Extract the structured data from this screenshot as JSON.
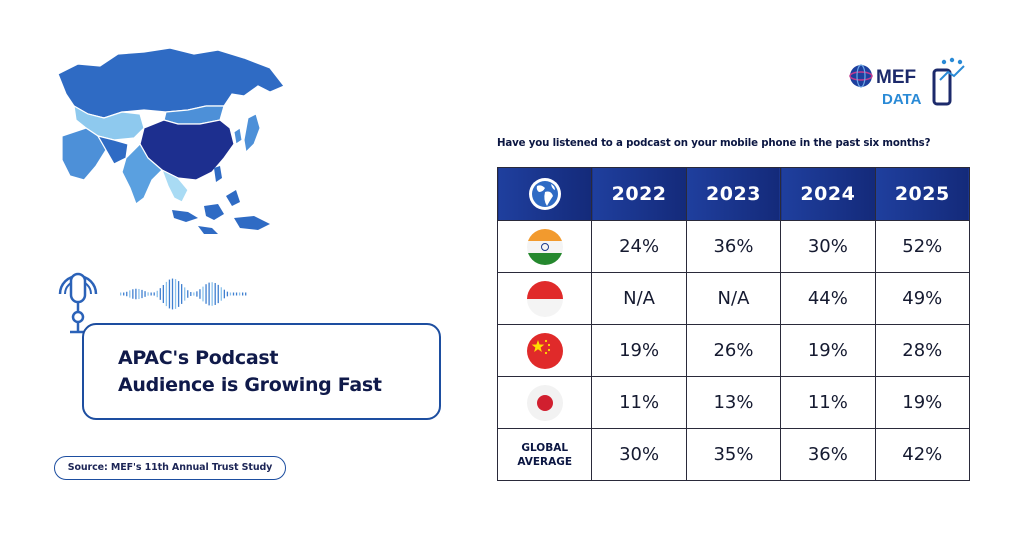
{
  "title": {
    "line1": "APAC's Podcast",
    "line2": "Audience is Growing Fast"
  },
  "source": "Source: MEF's 11th Annual Trust Study",
  "logo": {
    "text_top": "MEF",
    "text_bottom": "DATA"
  },
  "question": "Have you listened to a podcast on your mobile phone in the past six months?",
  "icons": {
    "header": "globe-icon",
    "map": "asia-map",
    "podcast": "microphone-icon",
    "wave": "soundwave-icon"
  },
  "colors": {
    "brand_blue": "#1d4ea0",
    "header_bg": "#1a3588",
    "dark_text": "#0f2150"
  },
  "chart_data": {
    "type": "table",
    "columns": [
      "2022",
      "2023",
      "2024",
      "2025"
    ],
    "rows": [
      {
        "label_icon": "india-flag-icon",
        "values": [
          "24%",
          "36%",
          "30%",
          "52%"
        ]
      },
      {
        "label_icon": "indonesia-flag-icon",
        "values": [
          "N/A",
          "N/A",
          "44%",
          "49%"
        ]
      },
      {
        "label_icon": "china-flag-icon",
        "values": [
          "19%",
          "26%",
          "19%",
          "28%"
        ]
      },
      {
        "label_icon": "japan-flag-icon",
        "values": [
          "11%",
          "13%",
          "11%",
          "19%"
        ]
      },
      {
        "label_line1": "GLOBAL",
        "label_line2": "AVERAGE",
        "values": [
          "30%",
          "35%",
          "36%",
          "42%"
        ]
      }
    ]
  }
}
